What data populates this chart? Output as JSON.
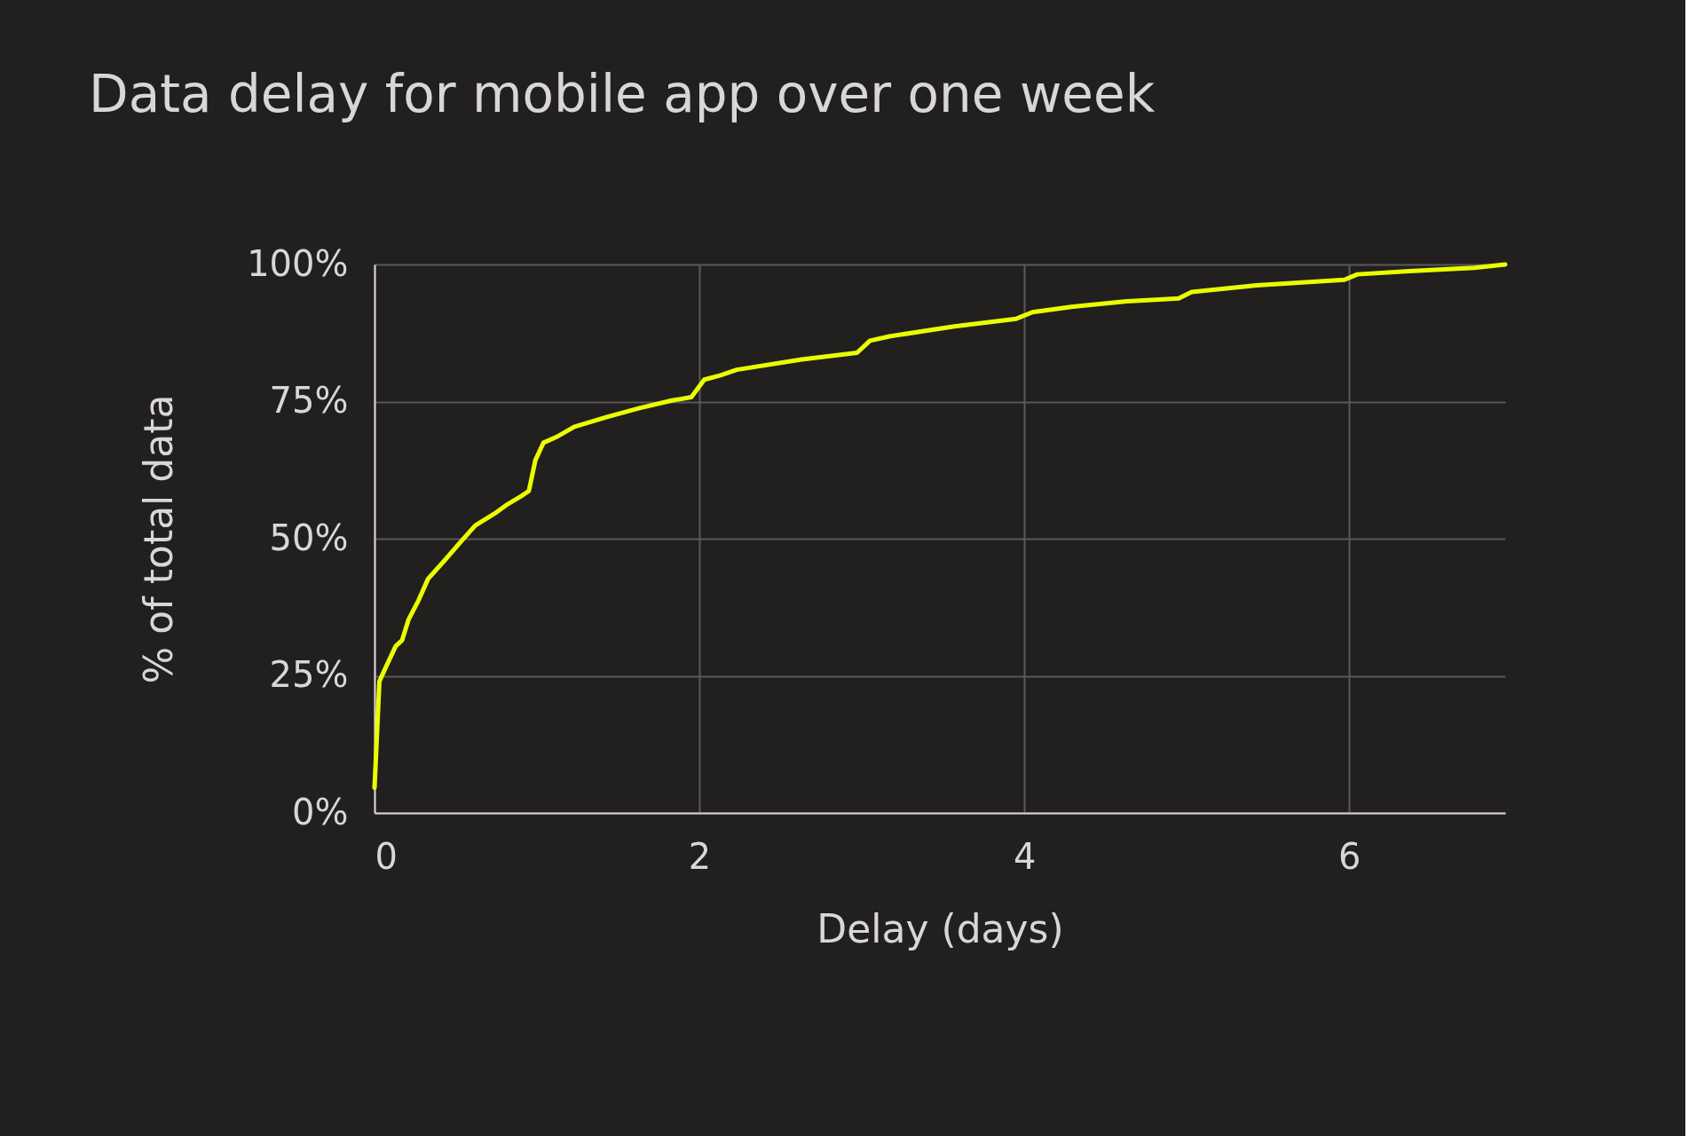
{
  "chart_data": {
    "type": "line",
    "title": "Data delay for mobile app over one week",
    "xlabel": "Delay (days)",
    "ylabel": "% of total data",
    "x": [
      0,
      0.01,
      0.03,
      0.07,
      0.13,
      0.17,
      0.21,
      0.27,
      0.33,
      0.43,
      0.53,
      0.62,
      0.75,
      0.82,
      0.9,
      0.95,
      0.99,
      1.04,
      1.13,
      1.23,
      1.43,
      1.63,
      1.83,
      1.95,
      2.03,
      2.13,
      2.23,
      2.63,
      2.97,
      3.05,
      3.17,
      3.57,
      3.95,
      4.05,
      4.3,
      4.63,
      4.95,
      5.03,
      5.43,
      5.97,
      6.05,
      6.37,
      6.77,
      6.96
    ],
    "series": [
      {
        "color": "#eaff00",
        "values": [
          4.6,
          11,
          24,
          26.6,
          30.4,
          31.5,
          35.3,
          38.7,
          42.7,
          46,
          49.4,
          52.4,
          54.8,
          56.3,
          57.7,
          58.7,
          64.3,
          67.5,
          68.7,
          70.4,
          72.2,
          73.8,
          75.2,
          75.8,
          79,
          79.8,
          80.8,
          82.7,
          83.9,
          86.1,
          86.9,
          88.7,
          90.1,
          91.3,
          92.3,
          93.3,
          93.8,
          95,
          96.2,
          97.2,
          98.2,
          98.8,
          99.4,
          100
        ]
      }
    ],
    "xlim": [
      0,
      6.96
    ],
    "xticks": [
      0,
      2,
      4,
      6
    ],
    "ylim": [
      0,
      100
    ],
    "yticks": [
      {
        "value": 0,
        "label": "0%"
      },
      {
        "value": 25,
        "label": "25%"
      },
      {
        "value": 50,
        "label": "50%"
      },
      {
        "value": 75,
        "label": "75%"
      },
      {
        "value": 100,
        "label": "100%"
      }
    ],
    "grid": true,
    "line_style": "solid",
    "marker": "none"
  }
}
